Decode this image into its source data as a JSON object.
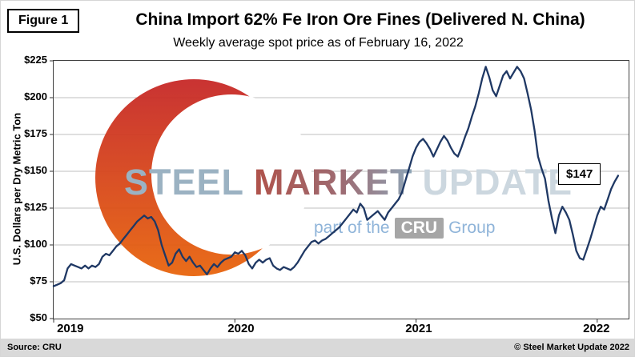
{
  "figure_label": "Figure 1",
  "title": "China Import 62% Fe Iron Ore Fines (Delivered N. China)",
  "subtitle": "Weekly average spot price as of February 16, 2022",
  "annotation": {
    "label": "$147"
  },
  "watermark": {
    "steel": "STEEL",
    "market": "MARKET",
    "update": "UPDATE",
    "tagline_prefix": "part of the",
    "cru": "CRU",
    "tagline_suffix": "Group"
  },
  "footer": {
    "source": "Source: CRU",
    "copyright": "© Steel Market Update 2022"
  },
  "colors": {
    "line": "#1f3864",
    "grid": "#bfbfbf",
    "axis": "#333333",
    "crescent_top": "#c62828",
    "crescent_bottom": "#e8650d",
    "footer_bg": "#d9d9d9"
  },
  "chart_data": {
    "type": "line",
    "title": "China Import 62% Fe Iron Ore Fines (Delivered N. China)",
    "subtitle": "Weekly average spot price as of February 16, 2022",
    "xlabel": "",
    "ylabel": "U.S. Dollars per Dry Metric Ton",
    "ylim": [
      50,
      225
    ],
    "ytick_values": [
      50,
      75,
      100,
      125,
      150,
      175,
      200,
      225
    ],
    "ytick_labels": [
      "$50",
      "$75",
      "$100",
      "$125",
      "$150",
      "$175",
      "$200",
      "$225"
    ],
    "x_unit": "weeks since 2019-01-04",
    "x_domain_weeks": 165,
    "x_ticks": [
      {
        "label": "2019",
        "tick_week": 0,
        "label_week": 5
      },
      {
        "label": "2020",
        "tick_week": 52,
        "label_week": 54
      },
      {
        "label": "2021",
        "tick_week": 104,
        "label_week": 105
      },
      {
        "label": "2022",
        "tick_week": 156,
        "label_week": 156
      }
    ],
    "grid": "horizontal",
    "legend": "none",
    "annotation_last_point": "$147",
    "series": [
      {
        "name": "Weekly average spot price (USD per dry metric ton)",
        "values": [
          72,
          73,
          74,
          76,
          84,
          87,
          86,
          85,
          84,
          86,
          84,
          86,
          85,
          87,
          92,
          94,
          93,
          96,
          99,
          101,
          104,
          107,
          110,
          113,
          116,
          118,
          120,
          118,
          119,
          116,
          110,
          100,
          93,
          86,
          88,
          94,
          97,
          92,
          89,
          92,
          88,
          85,
          86,
          83,
          80,
          84,
          87,
          85,
          88,
          90,
          91,
          92,
          95,
          94,
          96,
          93,
          87,
          84,
          88,
          90,
          88,
          90,
          91,
          86,
          84,
          83,
          85,
          84,
          83,
          85,
          88,
          92,
          96,
          99,
          102,
          103,
          101,
          103,
          104,
          106,
          108,
          110,
          112,
          115,
          118,
          121,
          124,
          122,
          128,
          125,
          117,
          119,
          121,
          123,
          120,
          117,
          122,
          125,
          128,
          131,
          136,
          144,
          152,
          160,
          166,
          170,
          172,
          169,
          165,
          160,
          165,
          170,
          174,
          171,
          166,
          162,
          160,
          166,
          173,
          179,
          187,
          194,
          203,
          213,
          221,
          214,
          205,
          201,
          208,
          215,
          218,
          213,
          217,
          221,
          218,
          213,
          203,
          192,
          178,
          160,
          152,
          145,
          130,
          118,
          108,
          120,
          126,
          122,
          117,
          107,
          96,
          91,
          90,
          97,
          104,
          112,
          120,
          126,
          124,
          131,
          138,
          143,
          147
        ]
      }
    ]
  }
}
